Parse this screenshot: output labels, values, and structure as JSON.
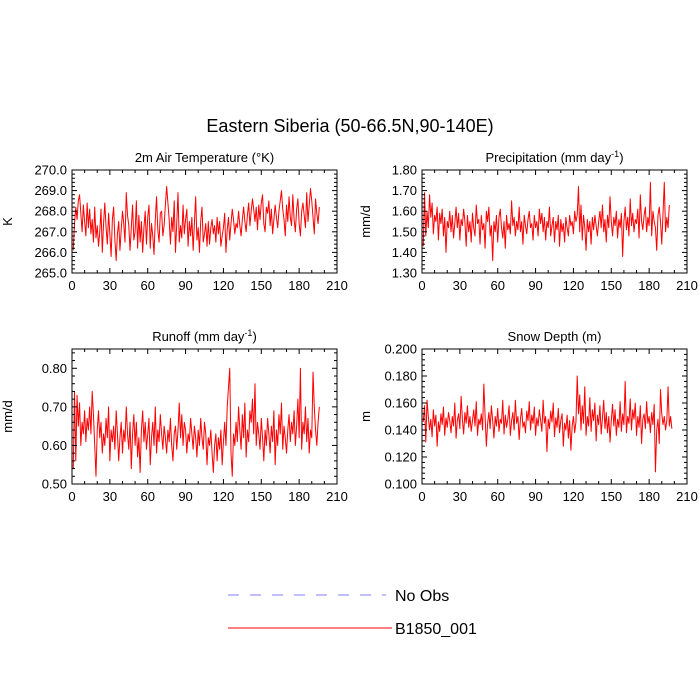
{
  "title": "Eastern Siberia (50-66.5N,90-140E)",
  "legend": {
    "placement": "bottom-center",
    "items": [
      {
        "label": "No Obs",
        "color": "#7f7fff",
        "style": "dashed"
      },
      {
        "label": "B1850_001",
        "color": "#ff0000",
        "style": "solid"
      }
    ]
  },
  "chart_data": [
    {
      "type": "line",
      "title": "2m Air Temperature (°K)",
      "ylabel": "K",
      "xlim": [
        0,
        210
      ],
      "ylim": [
        265.0,
        270.0
      ],
      "xticks": [
        0,
        30,
        60,
        90,
        120,
        150,
        180,
        210
      ],
      "yticks": [
        "265.0",
        "266.0",
        "267.0",
        "268.0",
        "269.0",
        "270.0"
      ],
      "series": [
        {
          "name": "B1850_001",
          "color": "#ff0000",
          "x_start": 1,
          "x_step": 1,
          "values": [
            266.1,
            267.4,
            268.2,
            267.6,
            268.5,
            268.8,
            267.9,
            267.0,
            268.3,
            267.5,
            266.8,
            268.4,
            267.2,
            268.1,
            266.9,
            267.6,
            266.5,
            268.2,
            266.7,
            267.3,
            266.3,
            267.0,
            268.1,
            266.0,
            267.4,
            268.4,
            267.2,
            266.4,
            267.9,
            266.9,
            265.8,
            267.6,
            268.2,
            266.6,
            265.6,
            266.9,
            267.5,
            266.1,
            267.1,
            268.0,
            267.4,
            266.5,
            268.9,
            267.8,
            267.3,
            266.1,
            267.2,
            268.3,
            266.6,
            267.0,
            268.5,
            266.2,
            267.8,
            266.5,
            267.5,
            266.0,
            267.2,
            268.0,
            266.4,
            267.7,
            268.3,
            266.2,
            267.4,
            266.8,
            265.9,
            267.6,
            268.7,
            267.1,
            266.5,
            267.9,
            268.0,
            266.8,
            267.3,
            268.3,
            269.2,
            268.4,
            267.6,
            266.4,
            267.7,
            267.0,
            268.5,
            266.0,
            267.4,
            268.9,
            266.5,
            267.3,
            266.7,
            268.3,
            266.9,
            267.6,
            268.1,
            266.3,
            267.5,
            266.8,
            267.7,
            266.1,
            267.4,
            268.7,
            266.6,
            267.2,
            266.0,
            267.5,
            268.2,
            266.5,
            266.9,
            267.4,
            266.3,
            267.5,
            266.4,
            267.2,
            267.6,
            266.9,
            267.3,
            266.5,
            267.7,
            266.9,
            267.5,
            266.3,
            266.8,
            267.2,
            267.9,
            266.0,
            267.1,
            267.7,
            266.6,
            267.4,
            268.1,
            267.6,
            266.9,
            267.4,
            267.2,
            268.0,
            267.3,
            266.8,
            267.6,
            268.2,
            267.5,
            267.0,
            267.8,
            268.4,
            267.3,
            268.0,
            268.6,
            268.1,
            267.5,
            268.2,
            267.1,
            268.3,
            267.6,
            268.4,
            268.8,
            267.4,
            267.0,
            268.2,
            267.9,
            268.5,
            267.3,
            268.1,
            266.9,
            267.6,
            268.3,
            267.7,
            267.2,
            268.0,
            268.5,
            269.0,
            268.1,
            267.6,
            266.8,
            268.3,
            267.5,
            268.7,
            267.7,
            267.3,
            268.8,
            267.6,
            267.0,
            268.1,
            268.6,
            267.4,
            266.8,
            268.0,
            268.4,
            267.8,
            267.2,
            268.9,
            267.5,
            268.3,
            269.1,
            268.5,
            267.7,
            266.9,
            268.6,
            267.9,
            267.4,
            268.2
          ]
        }
      ]
    },
    {
      "type": "line",
      "title": "Precipitation (mm day-1)",
      "title_parts": {
        "base": "Precipitation (mm day",
        "sup": "-1",
        "close": ")"
      },
      "ylabel": "mm/d",
      "xlim": [
        0,
        210
      ],
      "ylim": [
        1.3,
        1.8
      ],
      "xticks": [
        0,
        30,
        60,
        90,
        120,
        150,
        180,
        210
      ],
      "yticks": [
        "1.30",
        "1.40",
        "1.50",
        "1.60",
        "1.70",
        "1.80"
      ],
      "series": [
        {
          "name": "B1850_001",
          "color": "#ff0000",
          "x_start": 1,
          "x_step": 1,
          "values": [
            1.43,
            1.69,
            1.48,
            1.6,
            1.52,
            1.68,
            1.57,
            1.64,
            1.49,
            1.58,
            1.55,
            1.62,
            1.46,
            1.59,
            1.54,
            1.61,
            1.48,
            1.57,
            1.4,
            1.55,
            1.52,
            1.6,
            1.5,
            1.58,
            1.47,
            1.54,
            1.62,
            1.52,
            1.59,
            1.46,
            1.56,
            1.53,
            1.61,
            1.55,
            1.43,
            1.58,
            1.5,
            1.55,
            1.45,
            1.59,
            1.52,
            1.48,
            1.63,
            1.54,
            1.56,
            1.44,
            1.58,
            1.51,
            1.54,
            1.42,
            1.6,
            1.55,
            1.62,
            1.48,
            1.53,
            1.36,
            1.55,
            1.5,
            1.58,
            1.45,
            1.57,
            1.61,
            1.52,
            1.47,
            1.55,
            1.42,
            1.58,
            1.51,
            1.54,
            1.49,
            1.65,
            1.53,
            1.57,
            1.48,
            1.55,
            1.51,
            1.62,
            1.5,
            1.55,
            1.44,
            1.58,
            1.53,
            1.49,
            1.56,
            1.6,
            1.52,
            1.54,
            1.46,
            1.58,
            1.52,
            1.55,
            1.48,
            1.61,
            1.54,
            1.59,
            1.5,
            1.57,
            1.46,
            1.55,
            1.52,
            1.62,
            1.48,
            1.53,
            1.57,
            1.45,
            1.55,
            1.51,
            1.58,
            1.43,
            1.56,
            1.5,
            1.54,
            1.45,
            1.57,
            1.52,
            1.48,
            1.58,
            1.53,
            1.55,
            1.49,
            1.6,
            1.55,
            1.58,
            1.72,
            1.5,
            1.63,
            1.46,
            1.58,
            1.52,
            1.41,
            1.56,
            1.5,
            1.55,
            1.44,
            1.57,
            1.51,
            1.58,
            1.53,
            1.48,
            1.55,
            1.6,
            1.52,
            1.63,
            1.5,
            1.56,
            1.45,
            1.58,
            1.52,
            1.67,
            1.55,
            1.48,
            1.57,
            1.53,
            1.6,
            1.47,
            1.56,
            1.52,
            1.59,
            1.38,
            1.55,
            1.62,
            1.51,
            1.57,
            1.48,
            1.66,
            1.53,
            1.59,
            1.5,
            1.56,
            1.54,
            1.61,
            1.47,
            1.68,
            1.55,
            1.51,
            1.58,
            1.62,
            1.5,
            1.57,
            1.53,
            1.74,
            1.48,
            1.6,
            1.55,
            1.52,
            1.41,
            1.58,
            1.62,
            1.55,
            1.44,
            1.59,
            1.74,
            1.5,
            1.57,
            1.52,
            1.63
          ]
        }
      ]
    },
    {
      "type": "line",
      "title": "Runoff (mm day-1)",
      "title_parts": {
        "base": "Runoff (mm day",
        "sup": "-1",
        "close": ")"
      },
      "ylabel": "mm/d",
      "xlim": [
        0,
        210
      ],
      "ylim": [
        0.5,
        0.85
      ],
      "xticks": [
        0,
        30,
        60,
        90,
        120,
        150,
        180,
        210
      ],
      "yticks": [
        "0.50",
        "0.60",
        "0.70",
        "0.80"
      ],
      "series": [
        {
          "name": "B1850_001",
          "color": "#ff0000",
          "x_start": 1,
          "x_step": 1,
          "values": [
            0.54,
            0.74,
            0.56,
            0.73,
            0.65,
            0.71,
            0.6,
            0.66,
            0.63,
            0.69,
            0.61,
            0.67,
            0.64,
            0.7,
            0.63,
            0.74,
            0.68,
            0.6,
            0.52,
            0.64,
            0.69,
            0.62,
            0.66,
            0.58,
            0.63,
            0.6,
            0.67,
            0.62,
            0.7,
            0.56,
            0.64,
            0.61,
            0.65,
            0.59,
            0.69,
            0.63,
            0.56,
            0.62,
            0.66,
            0.58,
            0.64,
            0.61,
            0.7,
            0.63,
            0.59,
            0.66,
            0.54,
            0.63,
            0.68,
            0.6,
            0.66,
            0.57,
            0.62,
            0.53,
            0.64,
            0.69,
            0.61,
            0.66,
            0.59,
            0.63,
            0.67,
            0.55,
            0.62,
            0.66,
            0.6,
            0.7,
            0.58,
            0.64,
            0.61,
            0.68,
            0.63,
            0.59,
            0.65,
            0.62,
            0.58,
            0.64,
            0.61,
            0.67,
            0.6,
            0.56,
            0.63,
            0.65,
            0.59,
            0.64,
            0.71,
            0.62,
            0.68,
            0.6,
            0.66,
            0.64,
            0.58,
            0.63,
            0.61,
            0.67,
            0.63,
            0.59,
            0.65,
            0.62,
            0.57,
            0.64,
            0.6,
            0.67,
            0.62,
            0.59,
            0.66,
            0.63,
            0.55,
            0.62,
            0.6,
            0.64,
            0.58,
            0.53,
            0.6,
            0.63,
            0.56,
            0.62,
            0.59,
            0.64,
            0.55,
            0.61,
            0.66,
            0.6,
            0.7,
            0.75,
            0.8,
            0.58,
            0.52,
            0.63,
            0.6,
            0.66,
            0.61,
            0.7,
            0.64,
            0.59,
            0.68,
            0.62,
            0.71,
            0.57,
            0.64,
            0.61,
            0.69,
            0.66,
            0.72,
            0.63,
            0.76,
            0.6,
            0.66,
            0.63,
            0.59,
            0.67,
            0.62,
            0.56,
            0.64,
            0.6,
            0.67,
            0.63,
            0.58,
            0.65,
            0.61,
            0.69,
            0.55,
            0.64,
            0.6,
            0.68,
            0.63,
            0.71,
            0.59,
            0.65,
            0.62,
            0.58,
            0.64,
            0.68,
            0.61,
            0.66,
            0.63,
            0.69,
            0.6,
            0.65,
            0.72,
            0.62,
            0.8,
            0.59,
            0.66,
            0.63,
            0.7,
            0.61,
            0.67,
            0.58,
            0.64,
            0.62,
            0.79,
            0.7,
            0.64,
            0.6,
            0.66,
            0.7
          ]
        }
      ]
    },
    {
      "type": "line",
      "title": "Snow Depth (m)",
      "ylabel": "m",
      "xlim": [
        0,
        210
      ],
      "ylim": [
        0.1,
        0.2
      ],
      "xticks": [
        0,
        30,
        60,
        90,
        120,
        150,
        180,
        210
      ],
      "yticks": [
        "0.100",
        "0.120",
        "0.140",
        "0.160",
        "0.180",
        "0.200"
      ],
      "series": [
        {
          "name": "B1850_001",
          "color": "#ff0000",
          "x_start": 1,
          "x_step": 1,
          "values": [
            0.146,
            0.158,
            0.131,
            0.162,
            0.15,
            0.14,
            0.148,
            0.135,
            0.155,
            0.143,
            0.151,
            0.128,
            0.146,
            0.139,
            0.152,
            0.144,
            0.157,
            0.136,
            0.149,
            0.142,
            0.153,
            0.147,
            0.138,
            0.15,
            0.143,
            0.16,
            0.134,
            0.147,
            0.152,
            0.141,
            0.165,
            0.148,
            0.137,
            0.153,
            0.145,
            0.158,
            0.142,
            0.15,
            0.139,
            0.147,
            0.155,
            0.143,
            0.161,
            0.136,
            0.148,
            0.144,
            0.152,
            0.14,
            0.174,
            0.15,
            0.128,
            0.145,
            0.153,
            0.141,
            0.158,
            0.147,
            0.134,
            0.15,
            0.143,
            0.156,
            0.139,
            0.148,
            0.145,
            0.162,
            0.137,
            0.151,
            0.142,
            0.148,
            0.158,
            0.136,
            0.147,
            0.153,
            0.14,
            0.162,
            0.145,
            0.15,
            0.133,
            0.148,
            0.156,
            0.142,
            0.146,
            0.138,
            0.154,
            0.147,
            0.161,
            0.14,
            0.151,
            0.145,
            0.157,
            0.136,
            0.149,
            0.143,
            0.155,
            0.147,
            0.139,
            0.162,
            0.145,
            0.15,
            0.124,
            0.148,
            0.141,
            0.154,
            0.146,
            0.16,
            0.135,
            0.149,
            0.142,
            0.156,
            0.138,
            0.147,
            0.152,
            0.128,
            0.145,
            0.14,
            0.151,
            0.134,
            0.147,
            0.125,
            0.143,
            0.15,
            0.138,
            0.146,
            0.18,
            0.152,
            0.166,
            0.14,
            0.158,
            0.145,
            0.172,
            0.136,
            0.15,
            0.143,
            0.164,
            0.139,
            0.155,
            0.147,
            0.16,
            0.132,
            0.151,
            0.144,
            0.158,
            0.137,
            0.149,
            0.162,
            0.141,
            0.153,
            0.138,
            0.15,
            0.131,
            0.147,
            0.159,
            0.143,
            0.155,
            0.136,
            0.148,
            0.142,
            0.161,
            0.139,
            0.152,
            0.144,
            0.176,
            0.138,
            0.15,
            0.145,
            0.163,
            0.14,
            0.155,
            0.148,
            0.16,
            0.136,
            0.15,
            0.142,
            0.158,
            0.13,
            0.148,
            0.152,
            0.141,
            0.161,
            0.145,
            0.15,
            0.138,
            0.153,
            0.144,
            0.159,
            0.109,
            0.14,
            0.148,
            0.13,
            0.17,
            0.152,
            0.144,
            0.15,
            0.14,
            0.147,
            0.172,
            0.143,
            0.15,
            0.141
          ]
        }
      ]
    }
  ]
}
